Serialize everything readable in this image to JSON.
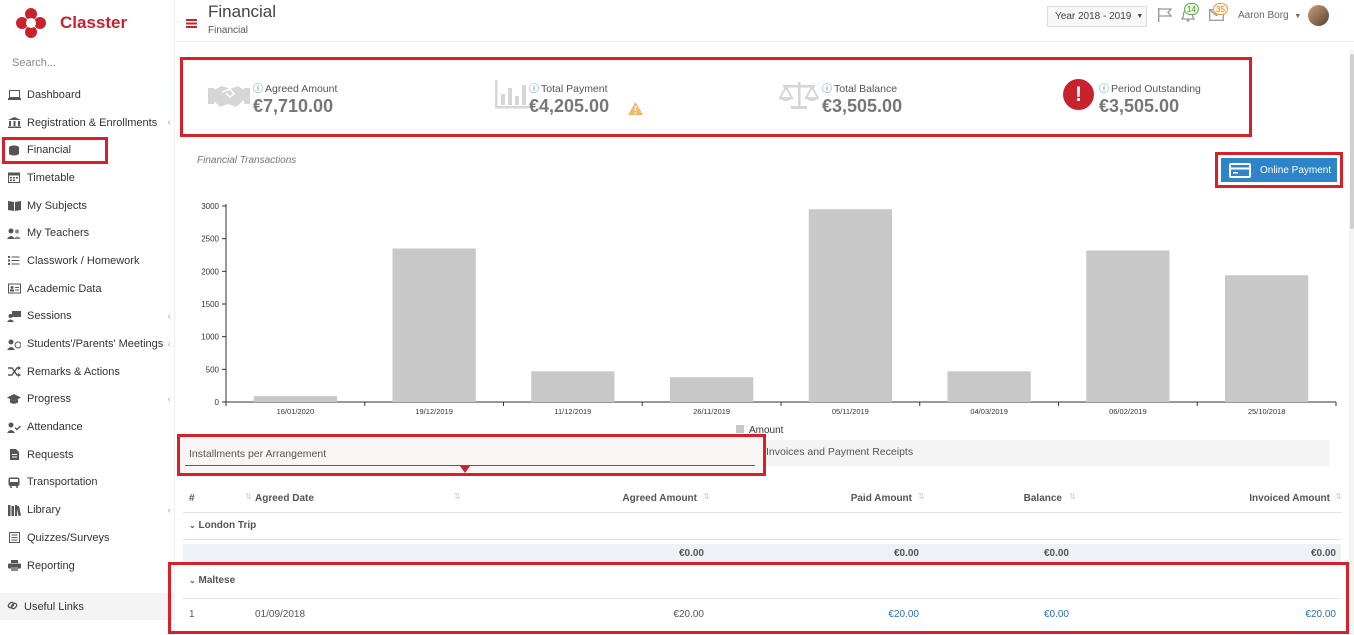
{
  "app": {
    "name": "Classter",
    "brand_color": "#c8232c",
    "highlight_color": "#d8202b"
  },
  "sidebar": {
    "search_placeholder": "Search...",
    "items": [
      {
        "label": "Dashboard",
        "icon": "laptop-icon"
      },
      {
        "label": "Registration & Enrollments",
        "icon": "institution-icon",
        "has_sub": true
      },
      {
        "label": "Financial",
        "icon": "coins-icon",
        "active": true
      },
      {
        "label": "Timetable",
        "icon": "calendar-icon"
      },
      {
        "label": "My Subjects",
        "icon": "book-icon"
      },
      {
        "label": "My Teachers",
        "icon": "users-icon"
      },
      {
        "label": "Classwork / Homework",
        "icon": "list-icon"
      },
      {
        "label": "Academic Data",
        "icon": "id-card-icon"
      },
      {
        "label": "Sessions",
        "icon": "sessions-icon",
        "has_sub": true
      },
      {
        "label": "Students'/Parents' Meetings",
        "icon": "meeting-icon",
        "has_sub": true
      },
      {
        "label": "Remarks & Actions",
        "icon": "shuffle-icon"
      },
      {
        "label": "Progress",
        "icon": "graduation-cap-icon",
        "has_sub": true
      },
      {
        "label": "Attendance",
        "icon": "user-check-icon"
      },
      {
        "label": "Requests",
        "icon": "file-icon"
      },
      {
        "label": "Transportation",
        "icon": "bus-icon"
      },
      {
        "label": "Library",
        "icon": "library-icon",
        "has_sub": true
      },
      {
        "label": "Quizzes/Surveys",
        "icon": "checklist-icon"
      },
      {
        "label": "Reporting",
        "icon": "printer-icon"
      }
    ],
    "useful_links": "Useful Links"
  },
  "header": {
    "title": "Financial",
    "breadcrumb": "Financial",
    "year": "Year 2018 - 2019",
    "notifications_count": "14",
    "messages_count": "35",
    "user_name": "Aaron Borg"
  },
  "summary": [
    {
      "label": "Agreed Amount",
      "value": "€7,710.00",
      "icon": "handshake-icon"
    },
    {
      "label": "Total Payment",
      "value": "€4,205.00",
      "icon": "bar-chart-icon",
      "warning": true
    },
    {
      "label": "Total Balance",
      "value": "€3,505.00",
      "icon": "balance-scale-icon"
    },
    {
      "label": "Period Outstanding",
      "value": "€3,505.00",
      "icon": "exclamation-circle-icon"
    }
  ],
  "chart_section": {
    "title": "Financial Transactions",
    "online_payment_label": "Online Payment"
  },
  "chart_data": {
    "type": "bar",
    "categories": [
      "16/01/2020",
      "19/12/2019",
      "11/12/2019",
      "26/11/2019",
      "05/11/2019",
      "04/03/2019",
      "06/02/2019",
      "25/10/2018"
    ],
    "series": [
      {
        "name": "Amount",
        "values": [
          90,
          2350,
          470,
          380,
          2950,
          470,
          2320,
          1940
        ],
        "color": "#c8c8c8"
      }
    ],
    "yticks": [
      0,
      500,
      1000,
      1500,
      2000,
      2500,
      3000
    ],
    "ylim": [
      0,
      3100
    ],
    "legend": "bottom",
    "xlabel": "",
    "ylabel": ""
  },
  "tabs": [
    {
      "label": "Installments per Arrangement",
      "active": true
    },
    {
      "label": "Invoices and Payment Receipts"
    }
  ],
  "table": {
    "columns": [
      "#",
      "Agreed Date",
      "Agreed Amount",
      "Paid Amount",
      "Balance",
      "Invoiced Amount"
    ],
    "groups": [
      {
        "name": "London Trip",
        "rows": [],
        "totals": {
          "agreed": "€0.00",
          "paid": "€0.00",
          "balance": "€0.00",
          "invoiced": "€0.00"
        }
      },
      {
        "name": "Maltese",
        "rows": [
          {
            "num": "1",
            "date": "01/09/2018",
            "agreed": "€20.00",
            "paid": "€20.00",
            "balance": "€0.00",
            "invoiced": "€20.00"
          }
        ]
      }
    ]
  }
}
